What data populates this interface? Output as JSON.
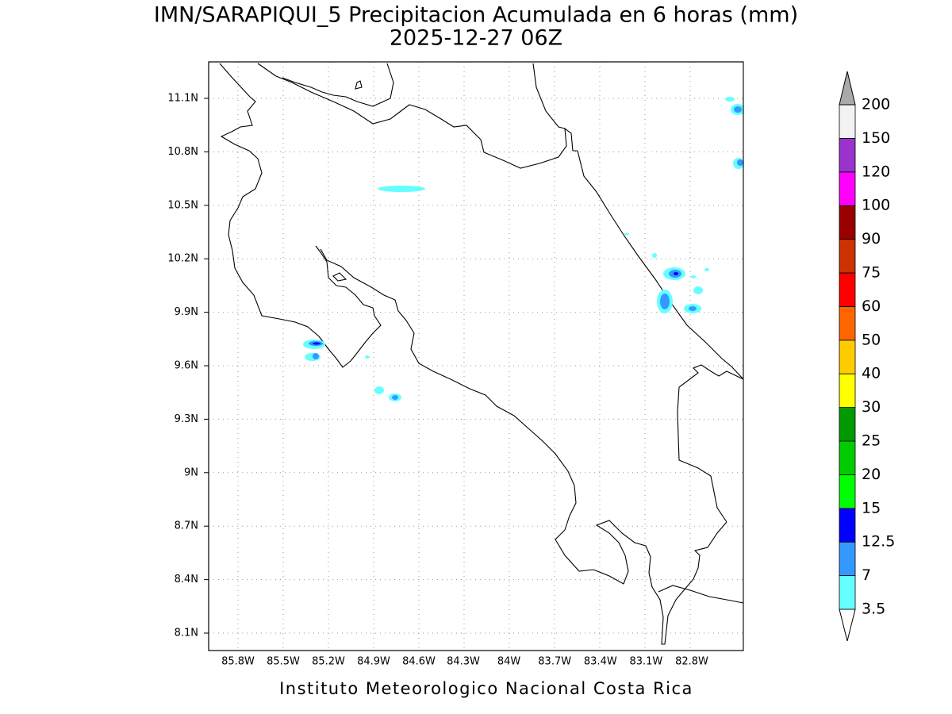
{
  "header": {
    "title": "IMN/SARAPIQUI_5 Precipitacion Acumulada en 6 horas (mm)",
    "subtitle": "2025-12-27 06Z"
  },
  "map": {
    "lat_labels": [
      "11.1N",
      "10.8N",
      "10.5N",
      "10.2N",
      "9.9N",
      "9.6N",
      "9.3N",
      "9N",
      "8.7N",
      "8.4N",
      "8.1N"
    ],
    "lon_labels": [
      "85.8W",
      "85.5W",
      "85.2W",
      "84.9W",
      "84.6W",
      "84.3W",
      "84W",
      "83.7W",
      "83.4W",
      "83.1W",
      "82.8W"
    ]
  },
  "colorbar": {
    "levels": [
      3.5,
      7,
      12.5,
      15,
      20,
      25,
      30,
      40,
      50,
      60,
      75,
      90,
      100,
      120,
      150,
      200
    ],
    "colors": [
      "#ffffff",
      "#66ffff",
      "#3399ff",
      "#0000ff",
      "#00ff00",
      "#00cc00",
      "#009900",
      "#ffff00",
      "#ffcc00",
      "#ff6600",
      "#ff0000",
      "#cc3300",
      "#990000",
      "#ff00ff",
      "#9933cc",
      "#f2f2f2",
      "#aaaaaa"
    ]
  },
  "footer": "Instituto Meteorologico Nacional Costa Rica"
}
